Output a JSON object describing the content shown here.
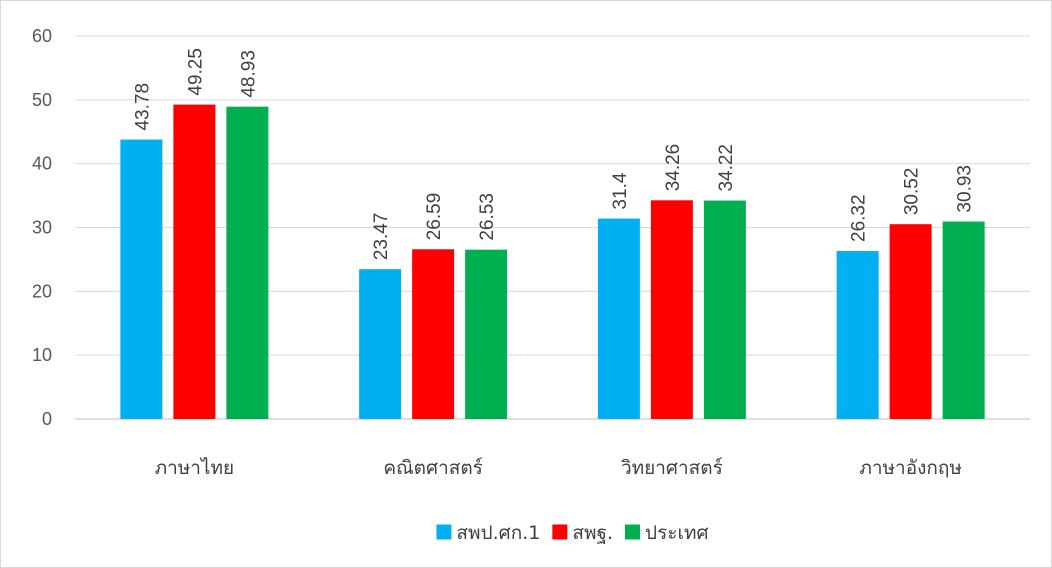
{
  "chart_data": {
    "type": "bar",
    "title": "",
    "xlabel": "",
    "ylabel": "",
    "ylim": [
      0,
      60
    ],
    "yticks": [
      0,
      10,
      20,
      30,
      40,
      50,
      60
    ],
    "grid": true,
    "legend_position": "bottom",
    "categories": [
      "ภาษาไทย",
      "คณิตศาสตร์",
      "วิทยาศาสตร์",
      "ภาษาอังกฤษ"
    ],
    "series": [
      {
        "name": "สพป.ศก.1",
        "color": "#00b0f0",
        "values": [
          43.78,
          23.47,
          31.4,
          26.32
        ],
        "labels": [
          "43.78",
          "23.47",
          "31.4",
          "26.32"
        ]
      },
      {
        "name": "สพฐ.",
        "color": "#ff0000",
        "values": [
          49.25,
          26.59,
          34.26,
          30.52
        ],
        "labels": [
          "49.25",
          "26.59",
          "34.26",
          "30.52"
        ]
      },
      {
        "name": "ประเทศ",
        "color": "#00b050",
        "values": [
          48.93,
          26.53,
          34.22,
          30.93
        ],
        "labels": [
          "48.93",
          "26.53",
          "34.22",
          "30.93"
        ]
      }
    ]
  }
}
